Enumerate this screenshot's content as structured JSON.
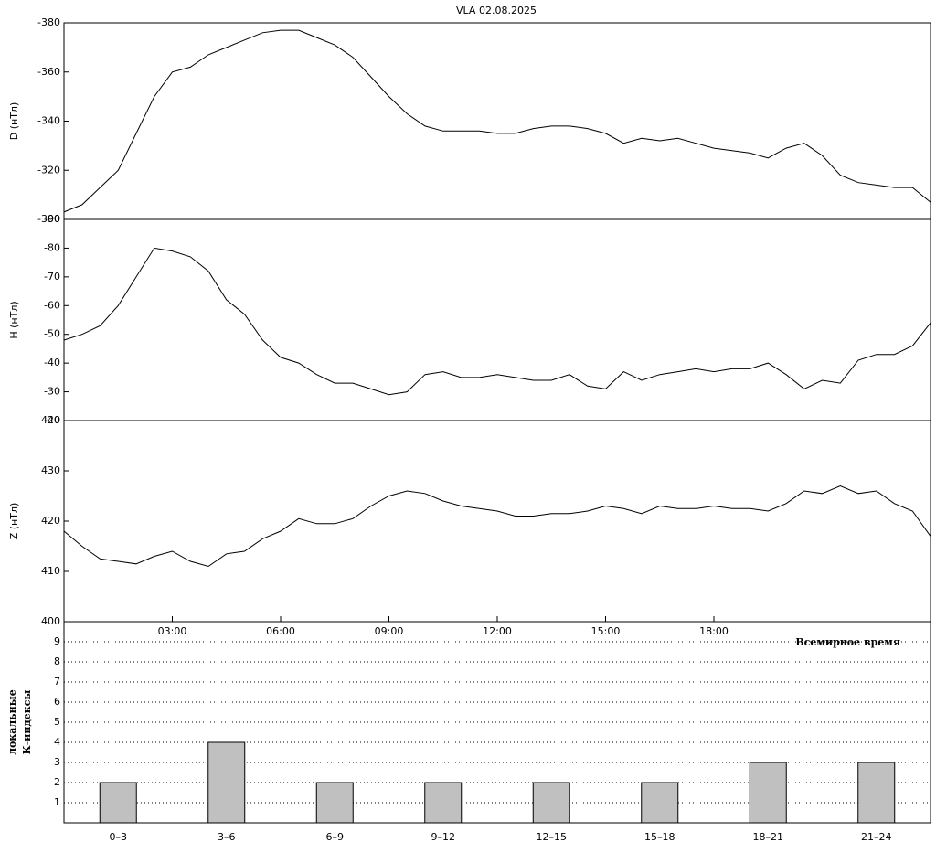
{
  "chart_data": [
    {
      "type": "line",
      "title": "VLA   02.08.2025",
      "y_label": "D (нТл)",
      "x": [
        0,
        0.5,
        1,
        1.5,
        2,
        2.5,
        3,
        3.5,
        4,
        4.5,
        5,
        5.5,
        6,
        6.5,
        7,
        7.5,
        8,
        8.5,
        9,
        9.5,
        10,
        10.5,
        11,
        11.5,
        12,
        12.5,
        13,
        13.5,
        14,
        14.5,
        15,
        15.5,
        16,
        16.5,
        17,
        17.5,
        18,
        18.5,
        19,
        19.5,
        20,
        20.5,
        21,
        21.5,
        22,
        22.5,
        23,
        23.5,
        24
      ],
      "series": [
        {
          "name": "D",
          "color": "#000000",
          "values": [
            -303,
            -306,
            -313,
            -320,
            -335,
            -350,
            -360,
            -362,
            -367,
            -370,
            -373,
            -376,
            -377,
            -377,
            -374,
            -371,
            -366,
            -358,
            -350,
            -343,
            -338,
            -336,
            -336,
            -336,
            -335,
            -335,
            -337,
            -338,
            -338,
            -337,
            -335,
            -331,
            -333,
            -332,
            -333,
            -331,
            -329,
            -328,
            -327,
            -325,
            -329,
            -331,
            -326,
            -318,
            -315,
            -314,
            -313,
            -313,
            -307
          ]
        }
      ],
      "xlim": [
        0,
        24
      ],
      "ylim": [
        -300,
        -380
      ],
      "yticks": [
        -300,
        -320,
        -340,
        -360,
        -380
      ]
    },
    {
      "type": "line",
      "y_label": "H (нТл)",
      "x": [
        0,
        0.5,
        1,
        1.5,
        2,
        2.5,
        3,
        3.5,
        4,
        4.5,
        5,
        5.5,
        6,
        6.5,
        7,
        7.5,
        8,
        8.5,
        9,
        9.5,
        10,
        10.5,
        11,
        11.5,
        12,
        12.5,
        13,
        13.5,
        14,
        14.5,
        15,
        15.5,
        16,
        16.5,
        17,
        17.5,
        18,
        18.5,
        19,
        19.5,
        20,
        20.5,
        21,
        21.5,
        22,
        22.5,
        23,
        23.5,
        24
      ],
      "series": [
        {
          "name": "H",
          "color": "#000000",
          "values": [
            -48,
            -50,
            -53,
            -60,
            -70,
            -80,
            -79,
            -77,
            -72,
            -62,
            -57,
            -48,
            -42,
            -40,
            -36,
            -33,
            -33,
            -31,
            -29,
            -30,
            -36,
            -37,
            -35,
            -35,
            -36,
            -35,
            -34,
            -34,
            -36,
            -32,
            -31,
            -37,
            -34,
            -36,
            -37,
            -38,
            -37,
            -38,
            -38,
            -40,
            -36,
            -31,
            -34,
            -33,
            -41,
            -43,
            -43,
            -46,
            -54
          ]
        }
      ],
      "xlim": [
        0,
        24
      ],
      "ylim": [
        -20,
        -90
      ],
      "yticks": [
        -20,
        -30,
        -40,
        -50,
        -60,
        -70,
        -80,
        -90
      ]
    },
    {
      "type": "line",
      "y_label": "Z (нТл)",
      "x_label": "Всемирное время",
      "x": [
        0,
        0.5,
        1,
        1.5,
        2,
        2.5,
        3,
        3.5,
        4,
        4.5,
        5,
        5.5,
        6,
        6.5,
        7,
        7.5,
        8,
        8.5,
        9,
        9.5,
        10,
        10.5,
        11,
        11.5,
        12,
        12.5,
        13,
        13.5,
        14,
        14.5,
        15,
        15.5,
        16,
        16.5,
        17,
        17.5,
        18,
        18.5,
        19,
        19.5,
        20,
        20.5,
        21,
        21.5,
        22,
        22.5,
        23,
        23.5,
        24
      ],
      "series": [
        {
          "name": "Z",
          "color": "#000000",
          "values": [
            418,
            415,
            412.5,
            412,
            411.5,
            413,
            414,
            412,
            411,
            413.5,
            414,
            416.5,
            418,
            420.5,
            419.5,
            419.5,
            420.5,
            423,
            425,
            426,
            425.5,
            424,
            423,
            422.5,
            422,
            421,
            421,
            421.5,
            421.5,
            422,
            423,
            422.5,
            421.5,
            423,
            422.5,
            422.5,
            423,
            422.5,
            422.5,
            422,
            423.5,
            426,
            425.5,
            427,
            425.5,
            426,
            423.5,
            422,
            417
          ]
        }
      ],
      "xlim": [
        0,
        24
      ],
      "ylim": [
        400,
        440
      ],
      "yticks": [
        400,
        410,
        420,
        430,
        440
      ],
      "xticks": [
        {
          "value": 3,
          "label": "03:00"
        },
        {
          "value": 6,
          "label": "06:00"
        },
        {
          "value": 9,
          "label": "09:00"
        },
        {
          "value": 12,
          "label": "12:00"
        },
        {
          "value": 15,
          "label": "15:00"
        },
        {
          "value": 18,
          "label": "18:00"
        }
      ]
    },
    {
      "type": "bar",
      "y_label": [
        "локальные",
        "К-индексы"
      ],
      "categories": [
        "0–3",
        "3–6",
        "6–9",
        "9–12",
        "12–15",
        "15–18",
        "18–21",
        "21–24"
      ],
      "values": [
        2,
        4,
        2,
        2,
        2,
        2,
        3,
        3
      ],
      "color": "#c0c0c0",
      "ylim": [
        0,
        10
      ],
      "yticks": [
        1,
        2,
        3,
        4,
        5,
        6,
        7,
        8,
        9
      ],
      "grid": true
    }
  ]
}
